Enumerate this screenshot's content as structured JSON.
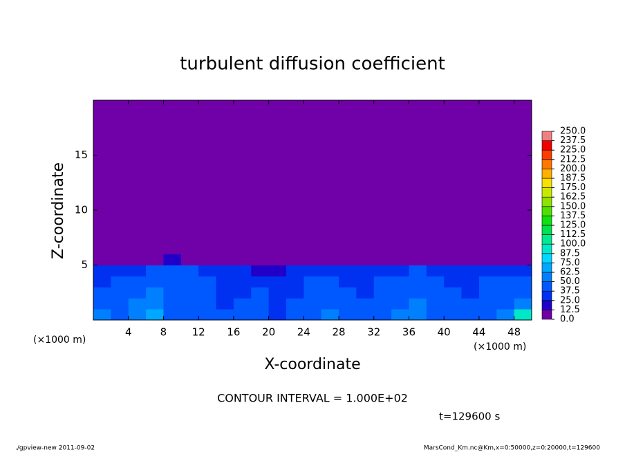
{
  "chart_data": {
    "type": "heatmap",
    "title": "turbulent diffusion coefficient",
    "xlabel": "X-coordinate",
    "ylabel": "Z-coordinate",
    "x_unit_label": "(×1000 m)",
    "contour_note": "CONTOUR INTERVAL = 1.000E+02",
    "time_label": "t=129600 s",
    "footer_left": "./gpview-new  2011-09-02",
    "footer_right": "MarsCond_Km.nc@Km,x=0:50000,z=0:20000,t=129600",
    "xlim": [
      0,
      50
    ],
    "ylim": [
      0,
      20
    ],
    "xticks": [
      4,
      8,
      12,
      16,
      20,
      24,
      28,
      32,
      36,
      40,
      44,
      48
    ],
    "yticks": [
      5,
      10,
      15
    ],
    "x_bins": [
      0,
      2,
      4,
      6,
      8,
      10,
      12,
      14,
      16,
      18,
      20,
      22,
      24,
      26,
      28,
      30,
      32,
      34,
      36,
      38,
      40,
      42,
      44,
      46,
      48,
      50
    ],
    "z_bins": [
      0,
      1,
      2,
      3,
      4,
      5,
      6,
      20
    ],
    "z": [
      [
        55,
        45,
        62,
        70,
        48,
        40,
        45,
        38,
        42,
        45,
        35,
        40,
        45,
        50,
        48,
        42,
        45,
        50,
        55,
        40,
        45,
        42,
        48,
        55,
        90
      ],
      [
        45,
        42,
        55,
        60,
        45,
        42,
        40,
        35,
        38,
        42,
        30,
        38,
        42,
        45,
        40,
        38,
        42,
        45,
        50,
        42,
        40,
        38,
        45,
        48,
        60
      ],
      [
        40,
        40,
        48,
        50,
        45,
        48,
        40,
        35,
        30,
        38,
        28,
        35,
        40,
        42,
        38,
        35,
        40,
        42,
        45,
        40,
        38,
        35,
        40,
        42,
        45
      ],
      [
        35,
        38,
        42,
        45,
        42,
        45,
        38,
        32,
        30,
        35,
        25,
        32,
        38,
        40,
        35,
        32,
        38,
        40,
        42,
        38,
        35,
        32,
        38,
        40,
        40
      ],
      [
        25,
        28,
        32,
        38,
        38,
        40,
        35,
        30,
        28,
        22,
        15,
        25,
        30,
        35,
        30,
        28,
        30,
        35,
        38,
        32,
        30,
        28,
        32,
        35,
        30
      ],
      [
        0,
        0,
        0,
        8,
        14,
        10,
        5,
        3,
        2,
        0,
        0,
        0,
        0,
        2,
        5,
        0,
        0,
        0,
        0,
        0,
        0,
        0,
        0,
        0,
        0
      ],
      [
        0,
        0,
        0,
        0,
        0,
        0,
        0,
        0,
        0,
        0,
        0,
        0,
        0,
        0,
        0,
        0,
        0,
        0,
        0,
        0,
        0,
        0,
        0,
        0,
        0
      ]
    ],
    "colorbar_ticks": [
      {
        "value": 0,
        "label": "0.0"
      },
      {
        "value": 12.5,
        "label": "12.5"
      },
      {
        "value": 25,
        "label": "25.0"
      },
      {
        "value": 37.5,
        "label": "37.5"
      },
      {
        "value": 50,
        "label": "50.0"
      },
      {
        "value": 62.5,
        "label": "62.5"
      },
      {
        "value": 75,
        "label": "75.0"
      },
      {
        "value": 87.5,
        "label": "87.5"
      },
      {
        "value": 100,
        "label": "100.0"
      },
      {
        "value": 112.5,
        "label": "112.5"
      },
      {
        "value": 125,
        "label": "125.0"
      },
      {
        "value": 137.5,
        "label": "137.5"
      },
      {
        "value": 150,
        "label": "150.0"
      },
      {
        "value": 162.5,
        "label": "162.5"
      },
      {
        "value": 175,
        "label": "175.0"
      },
      {
        "value": 187.5,
        "label": "187.5"
      },
      {
        "value": 200,
        "label": "200.0"
      },
      {
        "value": 212.5,
        "label": "212.5"
      },
      {
        "value": 225,
        "label": "225.0"
      },
      {
        "value": 237.5,
        "label": "237.5"
      },
      {
        "value": 250,
        "label": "250.0"
      }
    ],
    "level_colors": [
      "#7000a8",
      "#2000c8",
      "#0030f0",
      "#0058ff",
      "#0080ff",
      "#00a8ff",
      "#00d8ff",
      "#00e8c8",
      "#00e890",
      "#00e050",
      "#10e010",
      "#50e000",
      "#90e000",
      "#c8e800",
      "#f8e000",
      "#ffb000",
      "#ff7800",
      "#ff3c00",
      "#f00000",
      "#f08080"
    ]
  }
}
